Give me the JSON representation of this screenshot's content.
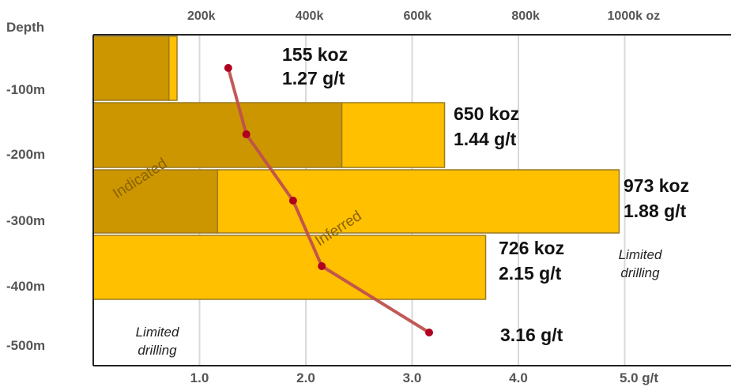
{
  "colors": {
    "inferred": "#FFC000",
    "indicated": "#CC9600",
    "grade_line": "#C0504D",
    "grid": "#D9D9D9",
    "text_muted": "#555555"
  },
  "chart_data": {
    "type": "bar",
    "orientation": "horizontal",
    "y_axis_title": "Depth",
    "categories": [
      "-100m",
      "-200m",
      "-300m",
      "-400m",
      "-500m"
    ],
    "top_axis": {
      "unit": "koz",
      "ticks": [
        "200k",
        "400k",
        "600k",
        "800k",
        "1000k oz"
      ],
      "values": [
        200,
        400,
        600,
        800,
        1000
      ],
      "range": [
        0,
        1180
      ]
    },
    "bottom_axis": {
      "unit": "g/t",
      "ticks": [
        "1.0",
        "2.0",
        "3.0",
        "4.0",
        "5.0 g/t"
      ],
      "values": [
        1,
        2,
        3,
        4,
        5
      ],
      "range": [
        0,
        6.0
      ]
    },
    "series": [
      {
        "name": "Indicated",
        "values": [
          140,
          460,
          230,
          0,
          0
        ]
      },
      {
        "name": "Inferred",
        "values": [
          15,
          190,
          743,
          726,
          0
        ]
      }
    ],
    "totals": [
      155,
      650,
      973,
      726,
      0
    ],
    "total_labels": [
      "155 koz",
      "650 koz",
      "973 koz",
      "726 koz",
      ""
    ],
    "grade": {
      "values": [
        1.27,
        1.44,
        1.88,
        2.15,
        3.16
      ],
      "labels": [
        "1.27 g/t",
        "1.44 g/t",
        "1.88 g/t",
        "2.15 g/t",
        "3.16 g/t"
      ]
    },
    "annotations": [
      "Indicated",
      "Inferred",
      "Limited drilling",
      "Limited drilling"
    ],
    "grid": true
  }
}
